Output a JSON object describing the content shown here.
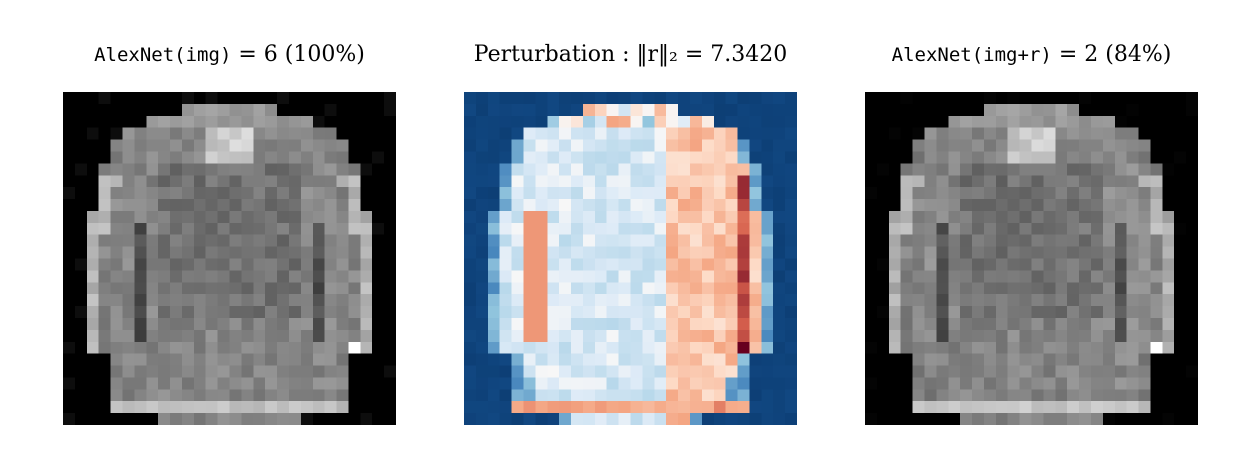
{
  "panels": [
    {
      "id": "original",
      "title_model": "AlexNet(img)",
      "title_rest": " = 6 (100%)",
      "colormap": "gray"
    },
    {
      "id": "perturbation",
      "title": "Perturbation : ‖r‖₂ = 7.3420",
      "colormap": "RdBu_r"
    },
    {
      "id": "adversarial",
      "title_model": "AlexNet(img+r)",
      "title_rest": " = 2 (84%)",
      "colormap": "gray"
    }
  ]
}
